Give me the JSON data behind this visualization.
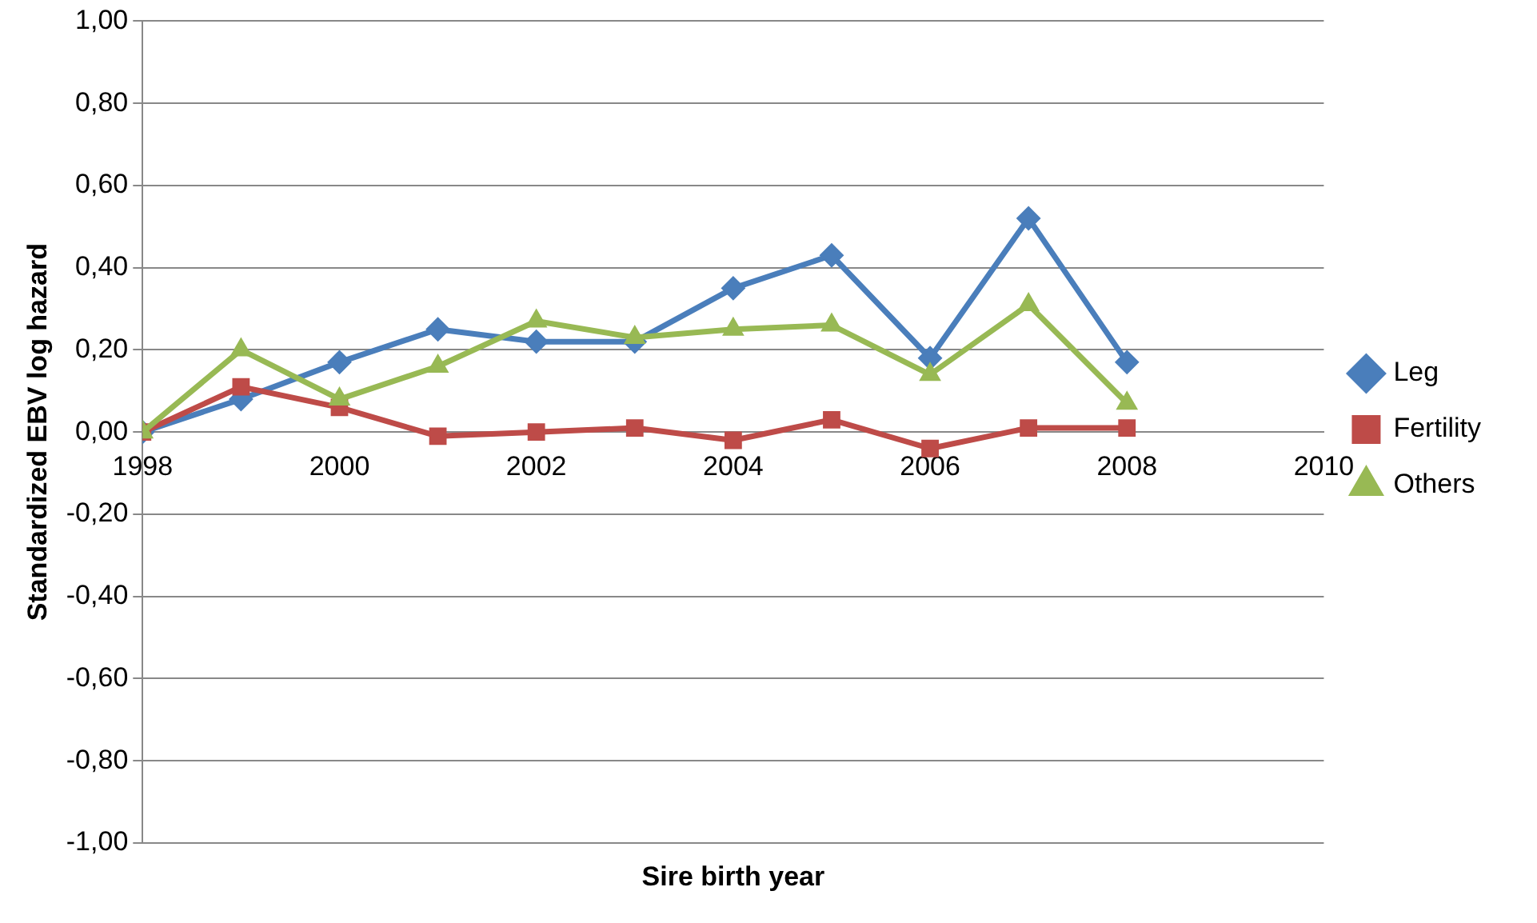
{
  "chart_data": {
    "type": "line",
    "xlabel": "Sire birth year",
    "ylabel": "Standardized EBV log hazard",
    "x": [
      1998,
      1999,
      2000,
      2001,
      2002,
      2003,
      2004,
      2005,
      2006,
      2007,
      2008
    ],
    "xlim": [
      1998,
      2010
    ],
    "xticks": [
      1998,
      2000,
      2002,
      2004,
      2006,
      2008,
      2010
    ],
    "ylim": [
      -1,
      1
    ],
    "yticks": [
      {
        "value": -1,
        "label": "-1,00"
      },
      {
        "value": -0.8,
        "label": "-0,80"
      },
      {
        "value": -0.6,
        "label": "-0,60"
      },
      {
        "value": -0.4,
        "label": "-0,40"
      },
      {
        "value": -0.2,
        "label": "-0,20"
      },
      {
        "value": 0,
        "label": "0,00"
      },
      {
        "value": 0.2,
        "label": "0,20"
      },
      {
        "value": 0.4,
        "label": "0,40"
      },
      {
        "value": 0.6,
        "label": "0,60"
      },
      {
        "value": 0.8,
        "label": "0,80"
      },
      {
        "value": 1,
        "label": "1,00"
      }
    ],
    "grid": "y",
    "legend": "right",
    "line_style": "solid",
    "series": [
      {
        "name": "Leg",
        "color": "#4a7ebb",
        "marker": "diamond",
        "values": [
          0,
          0.08,
          0.17,
          0.25,
          0.22,
          0.22,
          0.35,
          0.43,
          0.18,
          0.52,
          0.17
        ]
      },
      {
        "name": "Fertility",
        "color": "#be4b48",
        "marker": "square",
        "values": [
          0,
          0.11,
          0.06,
          -0.01,
          0,
          0.01,
          -0.02,
          0.03,
          -0.04,
          0.01,
          0.01
        ]
      },
      {
        "name": "Others",
        "color": "#98b954",
        "marker": "triangle",
        "values": [
          0,
          0.2,
          0.08,
          0.16,
          0.27,
          0.23,
          0.25,
          0.26,
          0.14,
          0.31,
          0.07
        ]
      }
    ]
  }
}
